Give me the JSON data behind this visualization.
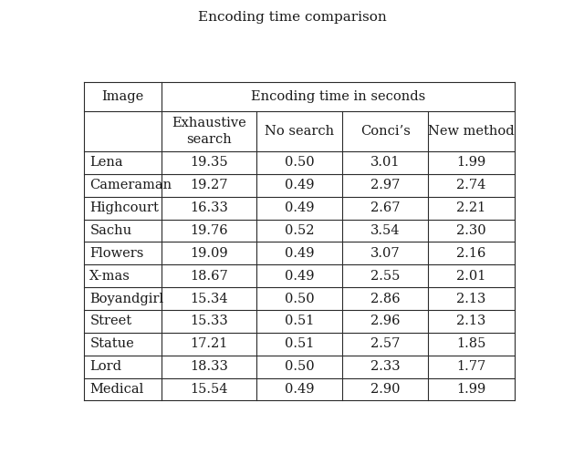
{
  "title": "Encoding time comparison",
  "col_span_header": "Encoding time in seconds",
  "sub_headers": [
    "Exhaustive\nsearch",
    "No search",
    "Conci’s",
    "New method"
  ],
  "rows": [
    [
      "Lena",
      "19.35",
      "0.50",
      "3.01",
      "1.99"
    ],
    [
      "Cameraman",
      "19.27",
      "0.49",
      "2.97",
      "2.74"
    ],
    [
      "Highcourt",
      "16.33",
      "0.49",
      "2.67",
      "2.21"
    ],
    [
      "Sachu",
      "19.76",
      "0.52",
      "3.54",
      "2.30"
    ],
    [
      "Flowers",
      "19.09",
      "0.49",
      "3.07",
      "2.16"
    ],
    [
      "X-mas",
      "18.67",
      "0.49",
      "2.55",
      "2.01"
    ],
    [
      "Boyandgirl",
      "15.34",
      "0.50",
      "2.86",
      "2.13"
    ],
    [
      "Street",
      "15.33",
      "0.51",
      "2.96",
      "2.13"
    ],
    [
      "Statue",
      "17.21",
      "0.51",
      "2.57",
      "1.85"
    ],
    [
      "Lord",
      "18.33",
      "0.50",
      "2.33",
      "1.77"
    ],
    [
      "Medical",
      "15.54",
      "0.49",
      "2.90",
      "1.99"
    ]
  ],
  "background_color": "#ffffff",
  "line_color": "#2b2b2b",
  "text_color": "#1a1a1a",
  "font_size": 10.5,
  "title_font_size": 11
}
